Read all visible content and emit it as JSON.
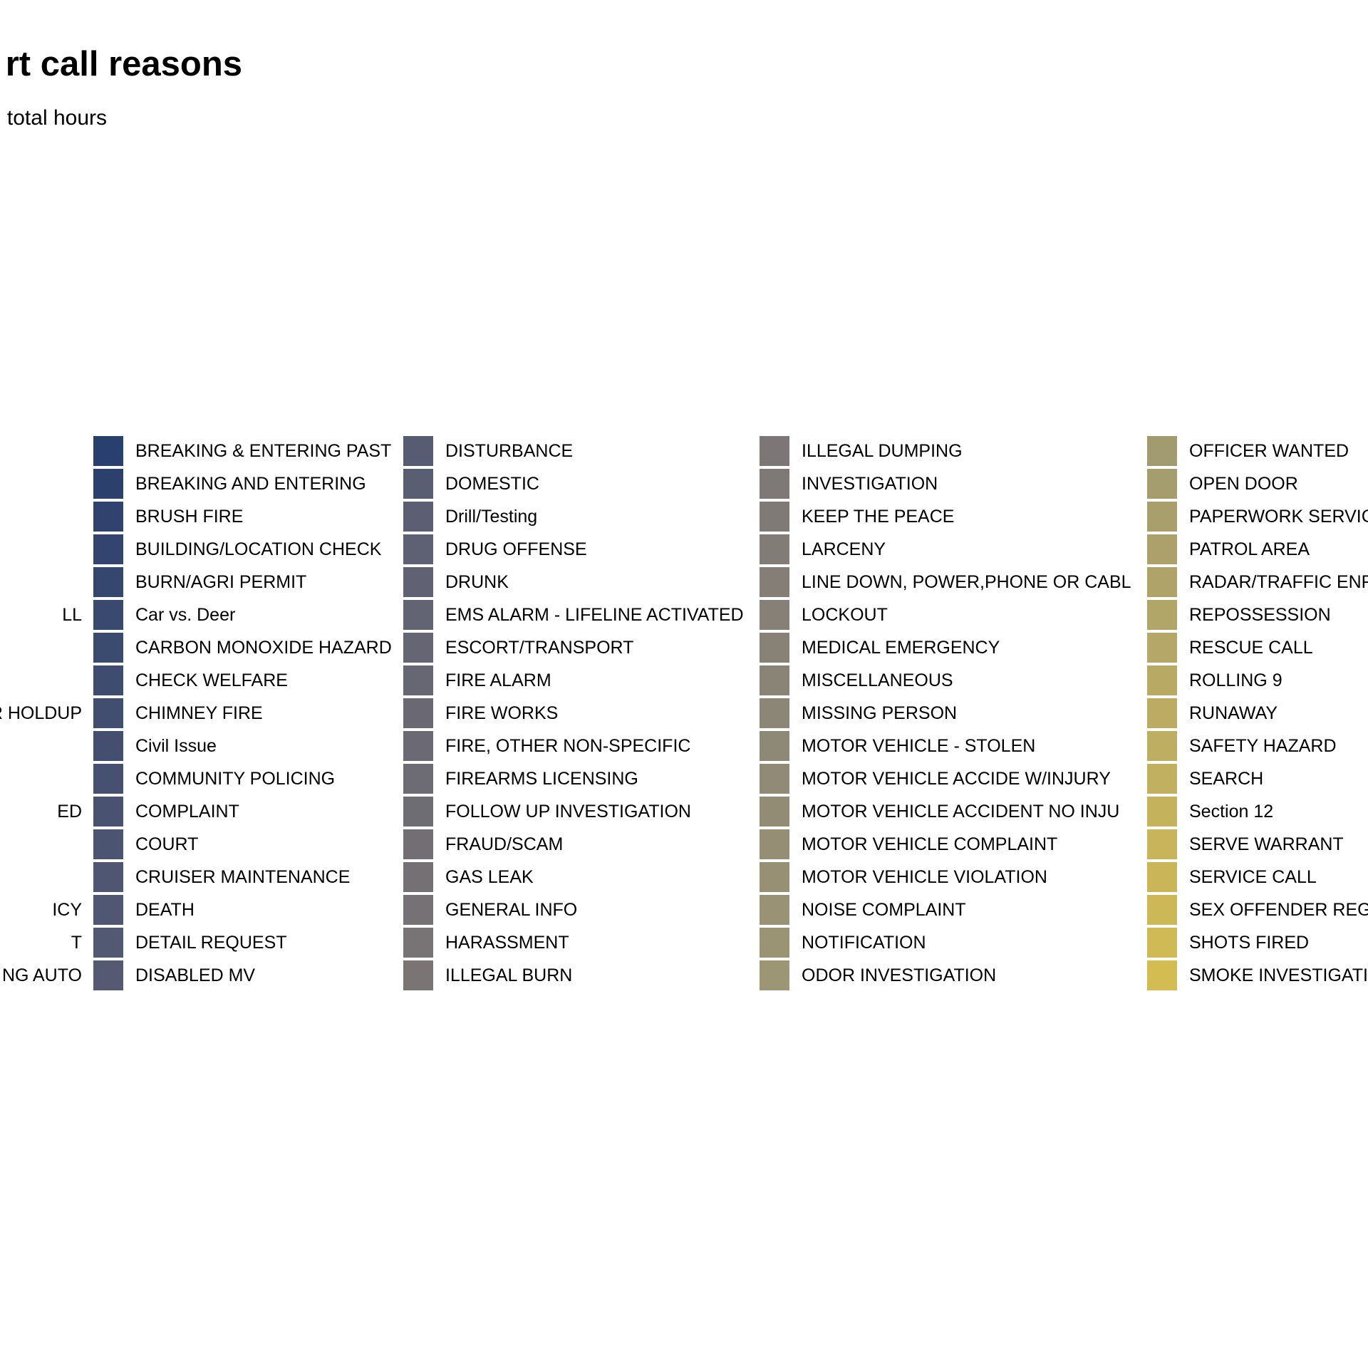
{
  "chart_data": {
    "type": "area",
    "title": "rt call reasons",
    "subtitle": "total hours",
    "legend": {
      "placement": "bottom",
      "left_cut_labels": [
        "LL",
        "R HOLDUP",
        "ED",
        "ICY",
        "T",
        "NG AUTO"
      ],
      "entries": [
        {
          "name": "BREAKING & ENTERING PAST",
          "color": "#293f6d"
        },
        {
          "name": "BREAKING AND ENTERING",
          "color": "#2c406d"
        },
        {
          "name": "BRUSH FIRE",
          "color": "#30436e"
        },
        {
          "name": "BUILDING/LOCATION CHECK",
          "color": "#33456e"
        },
        {
          "name": "BURN/AGRI PERMIT",
          "color": "#36476f"
        },
        {
          "name": "Car vs. Deer",
          "color": "#39496f"
        },
        {
          "name": "CARBON MONOXIDE HAZARD",
          "color": "#3b4a6f"
        },
        {
          "name": "CHECK WELFARE",
          "color": "#3e4c70"
        },
        {
          "name": "CHIMNEY FIRE",
          "color": "#414e70"
        },
        {
          "name": "Civil Issue",
          "color": "#444f70"
        },
        {
          "name": "COMMUNITY POLICING",
          "color": "#465171"
        },
        {
          "name": "COMPLAINT",
          "color": "#495371"
        },
        {
          "name": "COURT",
          "color": "#4b5471"
        },
        {
          "name": "CRUISER MAINTENANCE",
          "color": "#4e5672"
        },
        {
          "name": "DEATH",
          "color": "#505772"
        },
        {
          "name": "DETAIL REQUEST",
          "color": "#525972"
        },
        {
          "name": "DISABLED MV",
          "color": "#555a72"
        },
        {
          "name": "DISTURBANCE",
          "color": "#575c72"
        },
        {
          "name": "DOMESTIC",
          "color": "#5a5e72"
        },
        {
          "name": "Drill/Testing",
          "color": "#5c5f73"
        },
        {
          "name": "DRUG OFFENSE",
          "color": "#5e6173"
        },
        {
          "name": "DRUNK",
          "color": "#606273"
        },
        {
          "name": "EMS ALARM - LIFELINE ACTIVATED",
          "color": "#636473"
        },
        {
          "name": "ESCORT/TRANSPORT",
          "color": "#656573"
        },
        {
          "name": "FIRE ALARM",
          "color": "#676773"
        },
        {
          "name": "FIRE WORKS",
          "color": "#696873"
        },
        {
          "name": "FIRE, OTHER NON-SPECIFIC",
          "color": "#6b6a74"
        },
        {
          "name": "FIREARMS LICENSING",
          "color": "#6d6b74"
        },
        {
          "name": "FOLLOW UP INVESTIGATION",
          "color": "#6f6d74"
        },
        {
          "name": "FRAUD/SCAM",
          "color": "#726e74"
        },
        {
          "name": "GAS LEAK",
          "color": "#747074"
        },
        {
          "name": "GENERAL INFO",
          "color": "#767174"
        },
        {
          "name": "HARASSMENT",
          "color": "#787375"
        },
        {
          "name": "ILLEGAL BURN",
          "color": "#7a7475"
        },
        {
          "name": "ILLEGAL DUMPING",
          "color": "#7c7676"
        },
        {
          "name": "INVESTIGATION",
          "color": "#7e7876"
        },
        {
          "name": "KEEP THE PEACE",
          "color": "#807a76"
        },
        {
          "name": "LARCENY",
          "color": "#827c76"
        },
        {
          "name": "LINE DOWN, POWER,PHONE OR CABL",
          "color": "#847e76"
        },
        {
          "name": "LOCKOUT",
          "color": "#868076"
        },
        {
          "name": "MEDICAL EMERGENCY",
          "color": "#888276"
        },
        {
          "name": "MISCELLANEOUS",
          "color": "#8a8476"
        },
        {
          "name": "MISSING PERSON",
          "color": "#8c8676"
        },
        {
          "name": "MOTOR VEHICLE - STOLEN",
          "color": "#8e8876"
        },
        {
          "name": "MOTOR VEHICLE ACCIDE W/INJURY",
          "color": "#918a76"
        },
        {
          "name": "MOTOR VEHICLE ACCIDENT NO INJU",
          "color": "#938c75"
        },
        {
          "name": "MOTOR VEHICLE COMPLAINT",
          "color": "#958e75"
        },
        {
          "name": "MOTOR VEHICLE VIOLATION",
          "color": "#979075"
        },
        {
          "name": "NOISE COMPLAINT",
          "color": "#999274"
        },
        {
          "name": "NOTIFICATION",
          "color": "#9b9474"
        },
        {
          "name": "ODOR INVESTIGATION",
          "color": "#9d9674"
        },
        {
          "name": "OFFICER WANTED",
          "color": "#a39b70"
        },
        {
          "name": "OPEN DOOR",
          "color": "#a69d6e"
        },
        {
          "name": "PAPERWORK SERVIC",
          "color": "#a99f6d"
        },
        {
          "name": "PATROL AREA",
          "color": "#aca16b"
        },
        {
          "name": "RADAR/TRAFFIC ENF",
          "color": "#afa36a"
        },
        {
          "name": "REPOSSESSION",
          "color": "#b2a568"
        },
        {
          "name": "RESCUE CALL",
          "color": "#b5a767"
        },
        {
          "name": "ROLLING 9",
          "color": "#b8a965"
        },
        {
          "name": "RUNAWAY",
          "color": "#bbab63"
        },
        {
          "name": "SAFETY HAZARD",
          "color": "#beae61"
        },
        {
          "name": "SEARCH",
          "color": "#c1b05f"
        },
        {
          "name": "Section 12",
          "color": "#c4b25d"
        },
        {
          "name": "SERVE WARRANT",
          "color": "#c7b45b"
        },
        {
          "name": "SERVICE CALL",
          "color": "#cab659"
        },
        {
          "name": "SEX OFFENDER REG",
          "color": "#cdb857"
        },
        {
          "name": "SHOTS FIRED",
          "color": "#d0ba55"
        },
        {
          "name": "SMOKE INVESTIGATI",
          "color": "#d3bd52"
        }
      ]
    }
  }
}
